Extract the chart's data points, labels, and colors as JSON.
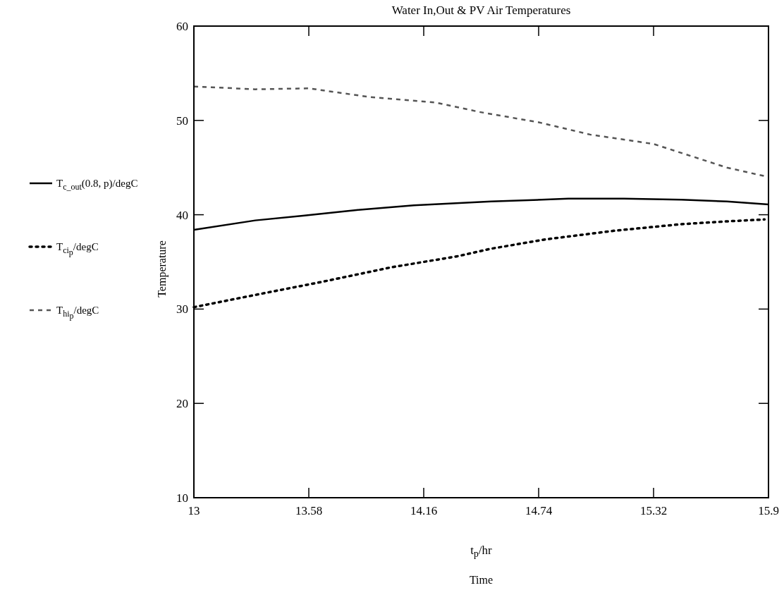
{
  "chart_data": {
    "type": "line",
    "title": "Water In,Out & PV Air Temperatures",
    "xlabel": "Time",
    "ylabel": "Temperature",
    "annotations": [
      "t$_{p}$/hr"
    ],
    "xlim": [
      13,
      15.9
    ],
    "xticks": [
      13,
      13.58,
      14.16,
      14.74,
      15.32,
      15.9
    ],
    "ylim": [
      10,
      60
    ],
    "yticks": [
      10,
      20,
      30,
      40,
      50,
      60
    ],
    "grid": false,
    "legend": "left",
    "series": [
      {
        "name": "T$_{c_out}$(0.8, p)/degC",
        "color": "#000000",
        "line_style": "solid",
        "x": [
          13,
          13.31,
          13.55,
          13.82,
          14.11,
          14.5,
          14.89,
          15.17,
          15.46,
          15.69,
          15.9
        ],
        "values": [
          38.4,
          39.4,
          39.9,
          40.5,
          41.0,
          41.4,
          41.7,
          41.7,
          41.6,
          41.4,
          41.1
        ]
      },
      {
        "name": "T$_{ci}$$_{p}$/degC",
        "color": "#000000",
        "line_style": "dotted",
        "x": [
          13,
          13.31,
          13.65,
          13.99,
          14.33,
          14.5,
          14.78,
          15.12,
          15.46,
          15.69,
          15.88
        ],
        "values": [
          30.2,
          31.5,
          32.9,
          34.4,
          35.6,
          36.4,
          37.4,
          38.3,
          39.0,
          39.3,
          39.5
        ]
      },
      {
        "name": "T$_{hi}$$_{p}$/degC",
        "color": "#555555",
        "line_style": "dashed",
        "x": [
          13,
          13.31,
          13.58,
          13.88,
          14.22,
          14.44,
          14.74,
          15.0,
          15.32,
          15.69,
          15.9
        ],
        "values": [
          53.6,
          53.3,
          53.4,
          52.5,
          51.9,
          50.9,
          49.8,
          48.5,
          47.5,
          45.0,
          44.0
        ]
      }
    ]
  }
}
